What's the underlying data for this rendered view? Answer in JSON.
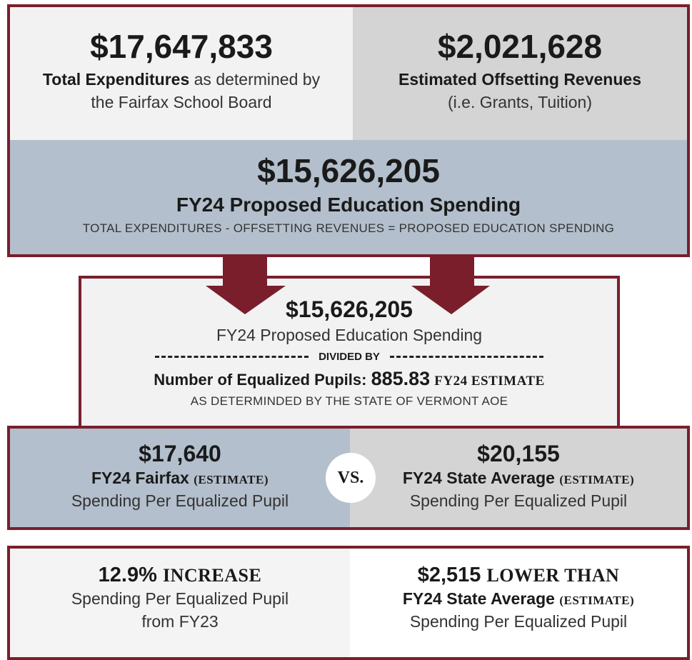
{
  "top": {
    "expenditures": {
      "amount": "$17,647,833",
      "label_bold": "Total Expenditures",
      "label_rest": "as determined by",
      "label_line2": "the Fairfax School Board"
    },
    "revenues": {
      "amount": "$2,021,628",
      "label_bold": "Estimated Offsetting Revenues",
      "label_line2": "(i.e. Grants, Tuition)"
    },
    "proposed": {
      "amount": "$15,626,205",
      "label": "FY24 Proposed Education Spending",
      "formula": "TOTAL EXPENDITURES - OFFSETTING REVENUES = PROPOSED EDUCATION SPENDING"
    }
  },
  "division": {
    "amount": "$15,626,205",
    "label": "FY24 Proposed Education Spending",
    "divider": "DIVIDED BY",
    "pupils_label": "Number of Equalized Pupils:",
    "pupils_value": "885.83",
    "pupils_note": "FY24 ESTIMATE",
    "source": "AS DETERMINDED BY THE STATE OF VERMONT AOE"
  },
  "comparison": {
    "fairfax": {
      "amount": "$17,640",
      "label_bold": "FY24 Fairfax",
      "label_note": "(ESTIMATE)",
      "label_line2": "Spending Per Equalized Pupil"
    },
    "vs": "VS.",
    "state": {
      "amount": "$20,155",
      "label_bold": "FY24 State Average",
      "label_note": "(ESTIMATE)",
      "label_line2": "Spending Per Equalized Pupil"
    }
  },
  "results": {
    "increase": {
      "amount": "12.9%",
      "amount_note": "INCREASE",
      "line1": "Spending Per Equalized Pupil",
      "line2": "from FY23"
    },
    "lower": {
      "amount": "$2,515",
      "amount_note": "LOWER THAN",
      "line1_bold": "FY24 State Average",
      "line1_note": "(ESTIMATE)",
      "line2": "Spending Per Equalized Pupil"
    }
  }
}
